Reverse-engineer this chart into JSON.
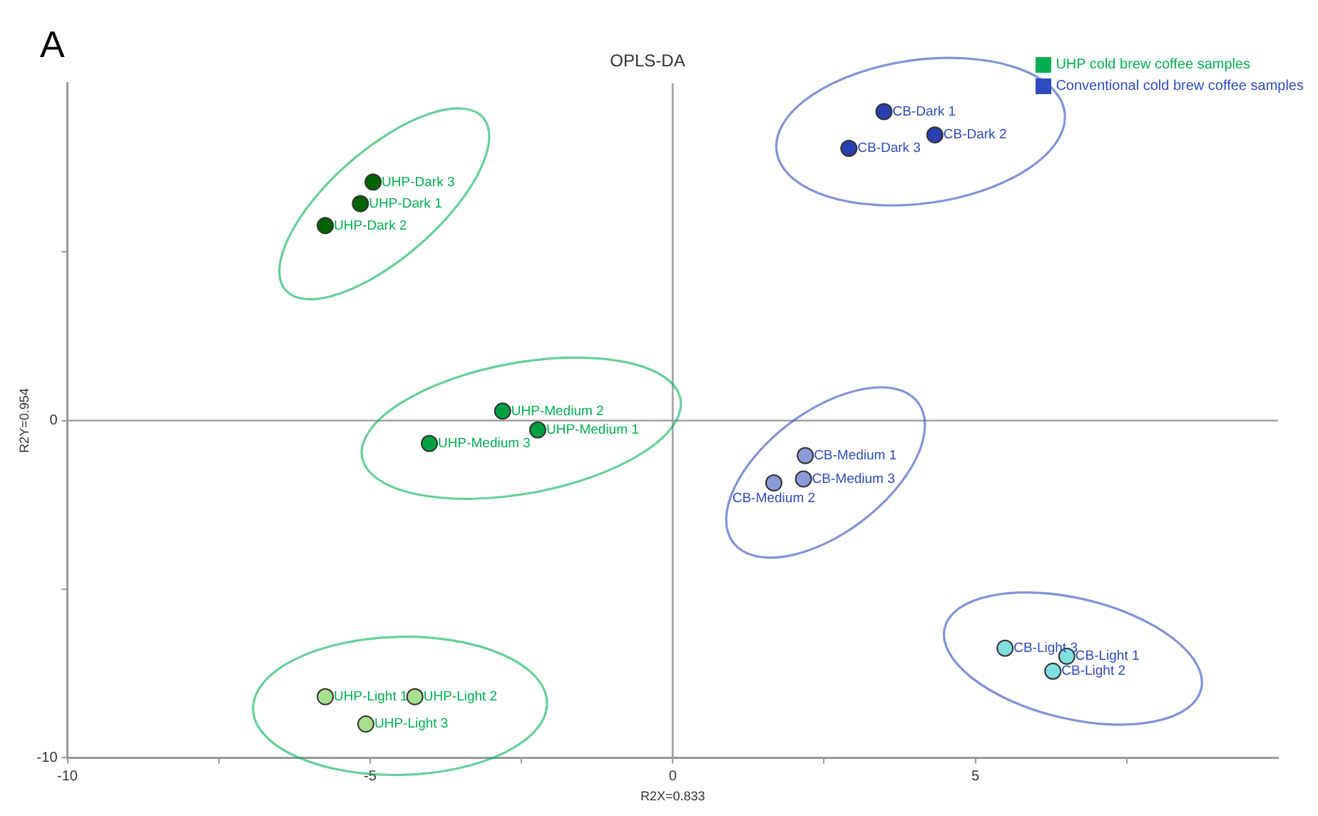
{
  "chart_data": {
    "type": "scatter",
    "title": "OPLS-DA",
    "xlabel": "R2X=0.833",
    "ylabel": "R2Y=0.954",
    "xlim": [
      -10,
      10
    ],
    "ylim": [
      -10,
      10
    ],
    "xticks": [
      -10,
      {
        "value": -7.5,
        "label": null
      },
      -5,
      {
        "value": -2.5,
        "label": null
      },
      0,
      {
        "value": 2.5,
        "label": null
      },
      5,
      {
        "value": 7.5,
        "label": null
      }
    ],
    "yticks": [
      -10,
      {
        "value": -5,
        "label": null
      },
      0,
      {
        "value": 5,
        "label": null
      }
    ],
    "grid": false,
    "legend": "top right",
    "marker": "circle",
    "ref_lines": [
      {
        "axis": "x",
        "value": 0
      },
      {
        "axis": "y",
        "value": 0
      }
    ],
    "series": [
      {
        "name": "UHP cold brew coffee samples",
        "color": "#00b050",
        "x": [
          -5.16,
          -5.74,
          -4.95,
          -2.23,
          -2.81,
          -4.02,
          -5.74,
          -4.26,
          -5.07
        ],
        "values": [
          6.43,
          5.78,
          7.07,
          -0.28,
          0.28,
          -0.68,
          -8.19,
          -8.19,
          -9.0
        ],
        "colors": [
          "#006400",
          "#006400",
          "#006400",
          "#00a040",
          "#00a040",
          "#00a040",
          "#a8e08c",
          "#a8e08c",
          "#a8e08c"
        ]
      },
      {
        "name": "Conventional cold brew coffee samples",
        "color": "#2e4bc0",
        "x": [
          3.49,
          4.33,
          2.91,
          2.19,
          1.67,
          2.16,
          6.51,
          6.28,
          5.49
        ],
        "values": [
          9.16,
          8.47,
          8.07,
          -1.04,
          -1.85,
          -1.73,
          -6.99,
          -7.43,
          -6.75
        ],
        "colors": [
          "#2a3fb0",
          "#2a3fb0",
          "#2a3fb0",
          "#8c9ad8",
          "#8c9ad8",
          "#8c9ad8",
          "#80e0e0",
          "#80e0e0",
          "#80e0e0"
        ]
      }
    ],
    "annotations": [
      "A",
      {
        "text": "UHP-Dark 1",
        "x": -5.16,
        "y": 6.43
      },
      {
        "text": "UHP-Dark 2",
        "x": -5.74,
        "y": 5.78
      },
      {
        "text": "UHP-Dark 3",
        "x": -4.95,
        "y": 7.07
      },
      {
        "text": "UHP-Medium 1",
        "x": -2.23,
        "y": -0.28
      },
      {
        "text": "UHP-Medium 2",
        "x": -2.81,
        "y": 0.28
      },
      {
        "text": "UHP-Medium 3",
        "x": -4.02,
        "y": -0.68
      },
      {
        "text": "UHP-Light 1",
        "x": -5.74,
        "y": -8.19
      },
      {
        "text": "UHP-Light 2",
        "x": -4.26,
        "y": -8.19
      },
      {
        "text": "UHP-Light 3",
        "x": -5.07,
        "y": -9.0
      },
      {
        "text": "CB-Dark 1",
        "x": 3.49,
        "y": 9.16
      },
      {
        "text": "CB-Dark 2",
        "x": 4.33,
        "y": 8.47
      },
      {
        "text": "CB-Dark 3",
        "x": 2.91,
        "y": 8.07
      },
      {
        "text": "CB-Medium 1",
        "x": 2.19,
        "y": -1.04
      },
      {
        "text": "CB-Medium 2",
        "x": 1.67,
        "y": -1.85
      },
      {
        "text": "CB-Medium 3",
        "x": 2.16,
        "y": -1.73
      },
      {
        "text": "CB-Light 1",
        "x": 6.51,
        "y": -6.99
      },
      {
        "text": "CB-Light 2",
        "x": 6.28,
        "y": -7.43
      },
      {
        "text": "CB-Light 3",
        "x": 5.49,
        "y": -6.75
      }
    ]
  }
}
